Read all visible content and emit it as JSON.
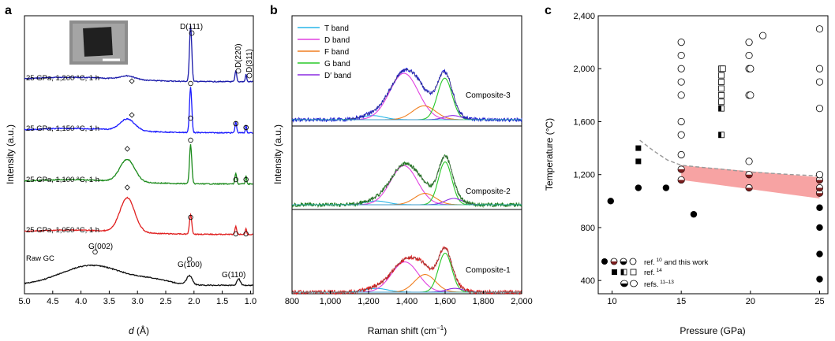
{
  "panel_labels": [
    "a",
    "b",
    "c"
  ],
  "ref_superscripts": {
    "a": "10",
    "b": "14",
    "c": "11–13"
  },
  "chart_data": [
    {
      "type": "line",
      "panel": "a",
      "xlabel_pre": "d",
      "xlabel_post": " (Å)",
      "ylabel": "Intensity (a.u.)",
      "xlim": [
        5.0,
        0.95
      ],
      "x_reversed": true,
      "xticks": [
        "5.0",
        "4.5",
        "4.0",
        "3.5",
        "3.0",
        "2.5",
        "2.0",
        "1.5",
        "1.0"
      ],
      "xtick_values": [
        5.0,
        4.5,
        4.0,
        3.5,
        3.0,
        2.5,
        2.0,
        1.5,
        1.0
      ],
      "series": [
        {
          "name": "25 GPa, 1,200 °C, 1 h",
          "color": "#1a1aaa",
          "baseline": 0.18,
          "amorphous": 0.1,
          "peaks": [
            [
              2.06,
              0.02,
              1.55
            ],
            [
              1.26,
              0.015,
              0.3
            ],
            [
              1.08,
              0.012,
              0.2
            ]
          ]
        },
        {
          "name": "25 GPa, 1,150 °C, 1 h",
          "color": "#1a1aff",
          "baseline": 0.16,
          "amorphous": 0.32,
          "peaks": [
            [
              2.06,
              0.02,
              1.25
            ],
            [
              1.26,
              0.015,
              0.3
            ],
            [
              1.08,
              0.012,
              0.2
            ]
          ]
        },
        {
          "name": "25 GPa, 1,100 °C, 1 h",
          "color": "#1a8a1a",
          "baseline": 0.16,
          "amorphous": 0.62,
          "peaks": [
            [
              2.06,
              0.02,
              1.08
            ],
            [
              1.26,
              0.015,
              0.3
            ],
            [
              1.08,
              0.012,
              0.22
            ]
          ]
        },
        {
          "name": "25 GPa, 1,050 °C, 1 h",
          "color": "#e02020",
          "baseline": 0.16,
          "amorphous": 0.95,
          "peaks": [
            [
              2.06,
              0.02,
              0.55
            ],
            [
              1.26,
              0.015,
              0.22
            ],
            [
              1.08,
              0.012,
              0.16
            ]
          ]
        },
        {
          "name": "Raw GC",
          "color": "#111111",
          "baseline": 0.06,
          "amorphous": 0.55,
          "peaks": [
            [
              2.08,
              0.05,
              0.25
            ],
            [
              1.21,
              0.03,
              0.18
            ]
          ]
        }
      ],
      "annotations": [
        "D(111)",
        "D(220)",
        "D(311)",
        "G(002)",
        "G(100)",
        "G(110)"
      ]
    },
    {
      "type": "line",
      "panel": "b",
      "xlabel": "Raman shift (cm",
      "xlabel_sup": "−1",
      "xlabel_close": ")",
      "ylabel": "Intensity (a.u.)",
      "xlim": [
        800,
        2000
      ],
      "xticks": [
        "800",
        "1,000",
        "1,200",
        "1,400",
        "1,600",
        "1,800",
        "2,000"
      ],
      "xtick_values": [
        800,
        1000,
        1200,
        1400,
        1600,
        1800,
        2000
      ],
      "legend_position": "top-left",
      "bands": [
        {
          "name": "T band",
          "color": "#29b6e8"
        },
        {
          "name": "D band",
          "color": "#e040e0"
        },
        {
          "name": "F band",
          "color": "#f07f20"
        },
        {
          "name": "G band",
          "color": "#28c828"
        },
        {
          "name": "D′ band",
          "color": "#8b2be2"
        }
      ],
      "composites": [
        {
          "name": "Composite-3",
          "color": "#1a1ad0",
          "T": [
            1220,
            60,
            0.06
          ],
          "D": [
            1385,
            75,
            0.67
          ],
          "F": [
            1490,
            60,
            0.2
          ],
          "G": [
            1598,
            38,
            0.6
          ],
          "Dp": [
            1640,
            45,
            0.06
          ]
        },
        {
          "name": "Composite-2",
          "color": "#1a7a1a",
          "T": [
            1240,
            60,
            0.06
          ],
          "D": [
            1385,
            70,
            0.62
          ],
          "F": [
            1495,
            55,
            0.18
          ],
          "G": [
            1600,
            35,
            0.68
          ],
          "Dp": [
            1645,
            45,
            0.1
          ]
        },
        {
          "name": "Composite-1",
          "color": "#e01818",
          "T": [
            1240,
            60,
            0.06
          ],
          "D": [
            1390,
            70,
            0.48
          ],
          "F": [
            1495,
            55,
            0.28
          ],
          "G": [
            1600,
            35,
            0.62
          ],
          "Dp": [
            1650,
            45,
            0.06
          ]
        }
      ]
    },
    {
      "type": "scatter",
      "panel": "c",
      "xlabel": "Pressure (GPa)",
      "ylabel": "Temperature (°C)",
      "xlim": [
        9,
        25.6
      ],
      "ylim": [
        300,
        2400
      ],
      "xticks": [
        "10",
        "15",
        "20",
        "25"
      ],
      "xtick_values": [
        10,
        15,
        20,
        25
      ],
      "yticks": [
        "400",
        "800",
        "1,200",
        "1,600",
        "2,000",
        "2,400"
      ],
      "ytick_values": [
        400,
        800,
        1200,
        1600,
        2000,
        2400
      ],
      "band": {
        "x": [
          15,
          25
        ],
        "y_low_left": 1160,
        "y_low_right": 1020,
        "y_high_left": 1270,
        "y_high_right": 1180,
        "color": "#f7a3a3"
      },
      "dashed_boundary": [
        [
          12,
          1460
        ],
        [
          13,
          1380
        ],
        [
          14,
          1310
        ],
        [
          15,
          1270
        ],
        [
          17,
          1250
        ],
        [
          20,
          1220
        ],
        [
          23,
          1200
        ],
        [
          25,
          1190
        ]
      ],
      "points": {
        "filled_circle": [
          [
            9.9,
            1000
          ],
          [
            11.9,
            1100
          ],
          [
            13.9,
            1100
          ],
          [
            15.9,
            900
          ],
          [
            25,
            950
          ],
          [
            25,
            800
          ],
          [
            25,
            600
          ],
          [
            25,
            410
          ]
        ],
        "half_circle": [
          [
            15,
            1160
          ],
          [
            15,
            1240
          ],
          [
            19.9,
            1100
          ],
          [
            19.9,
            1200
          ],
          [
            25,
            1060
          ],
          [
            25,
            1100
          ],
          [
            25,
            1160
          ]
        ],
        "open_circle": [
          [
            15,
            2200
          ],
          [
            15,
            2100
          ],
          [
            15,
            1900
          ],
          [
            15,
            1800
          ],
          [
            15,
            1500
          ],
          [
            15,
            1600
          ],
          [
            15,
            2000
          ],
          [
            15,
            1350
          ],
          [
            19.9,
            2200
          ],
          [
            19.9,
            2100
          ],
          [
            19.9,
            2000
          ],
          [
            20.0,
            2000
          ],
          [
            19.9,
            1800
          ],
          [
            20.0,
            1800
          ],
          [
            19.9,
            1300
          ],
          [
            20.9,
            2250
          ],
          [
            25,
            2300
          ],
          [
            25,
            2000
          ],
          [
            25,
            1900
          ],
          [
            25,
            1700
          ],
          [
            25,
            1200
          ]
        ],
        "filled_square": [
          [
            11.9,
            1400
          ],
          [
            11.9,
            1300
          ]
        ],
        "half_square": [
          [
            17.9,
            1700
          ],
          [
            17.9,
            1500
          ]
        ],
        "open_square": [
          [
            17.9,
            2000
          ],
          [
            18.0,
            2000
          ],
          [
            17.9,
            1950
          ],
          [
            17.9,
            1900
          ],
          [
            17.9,
            1850
          ],
          [
            17.9,
            1800
          ],
          [
            17.9,
            1750
          ]
        ]
      },
      "legend_position": "bottom-left",
      "legend": [
        "ref.",
        "and this work",
        "ref.",
        "refs."
      ]
    }
  ]
}
